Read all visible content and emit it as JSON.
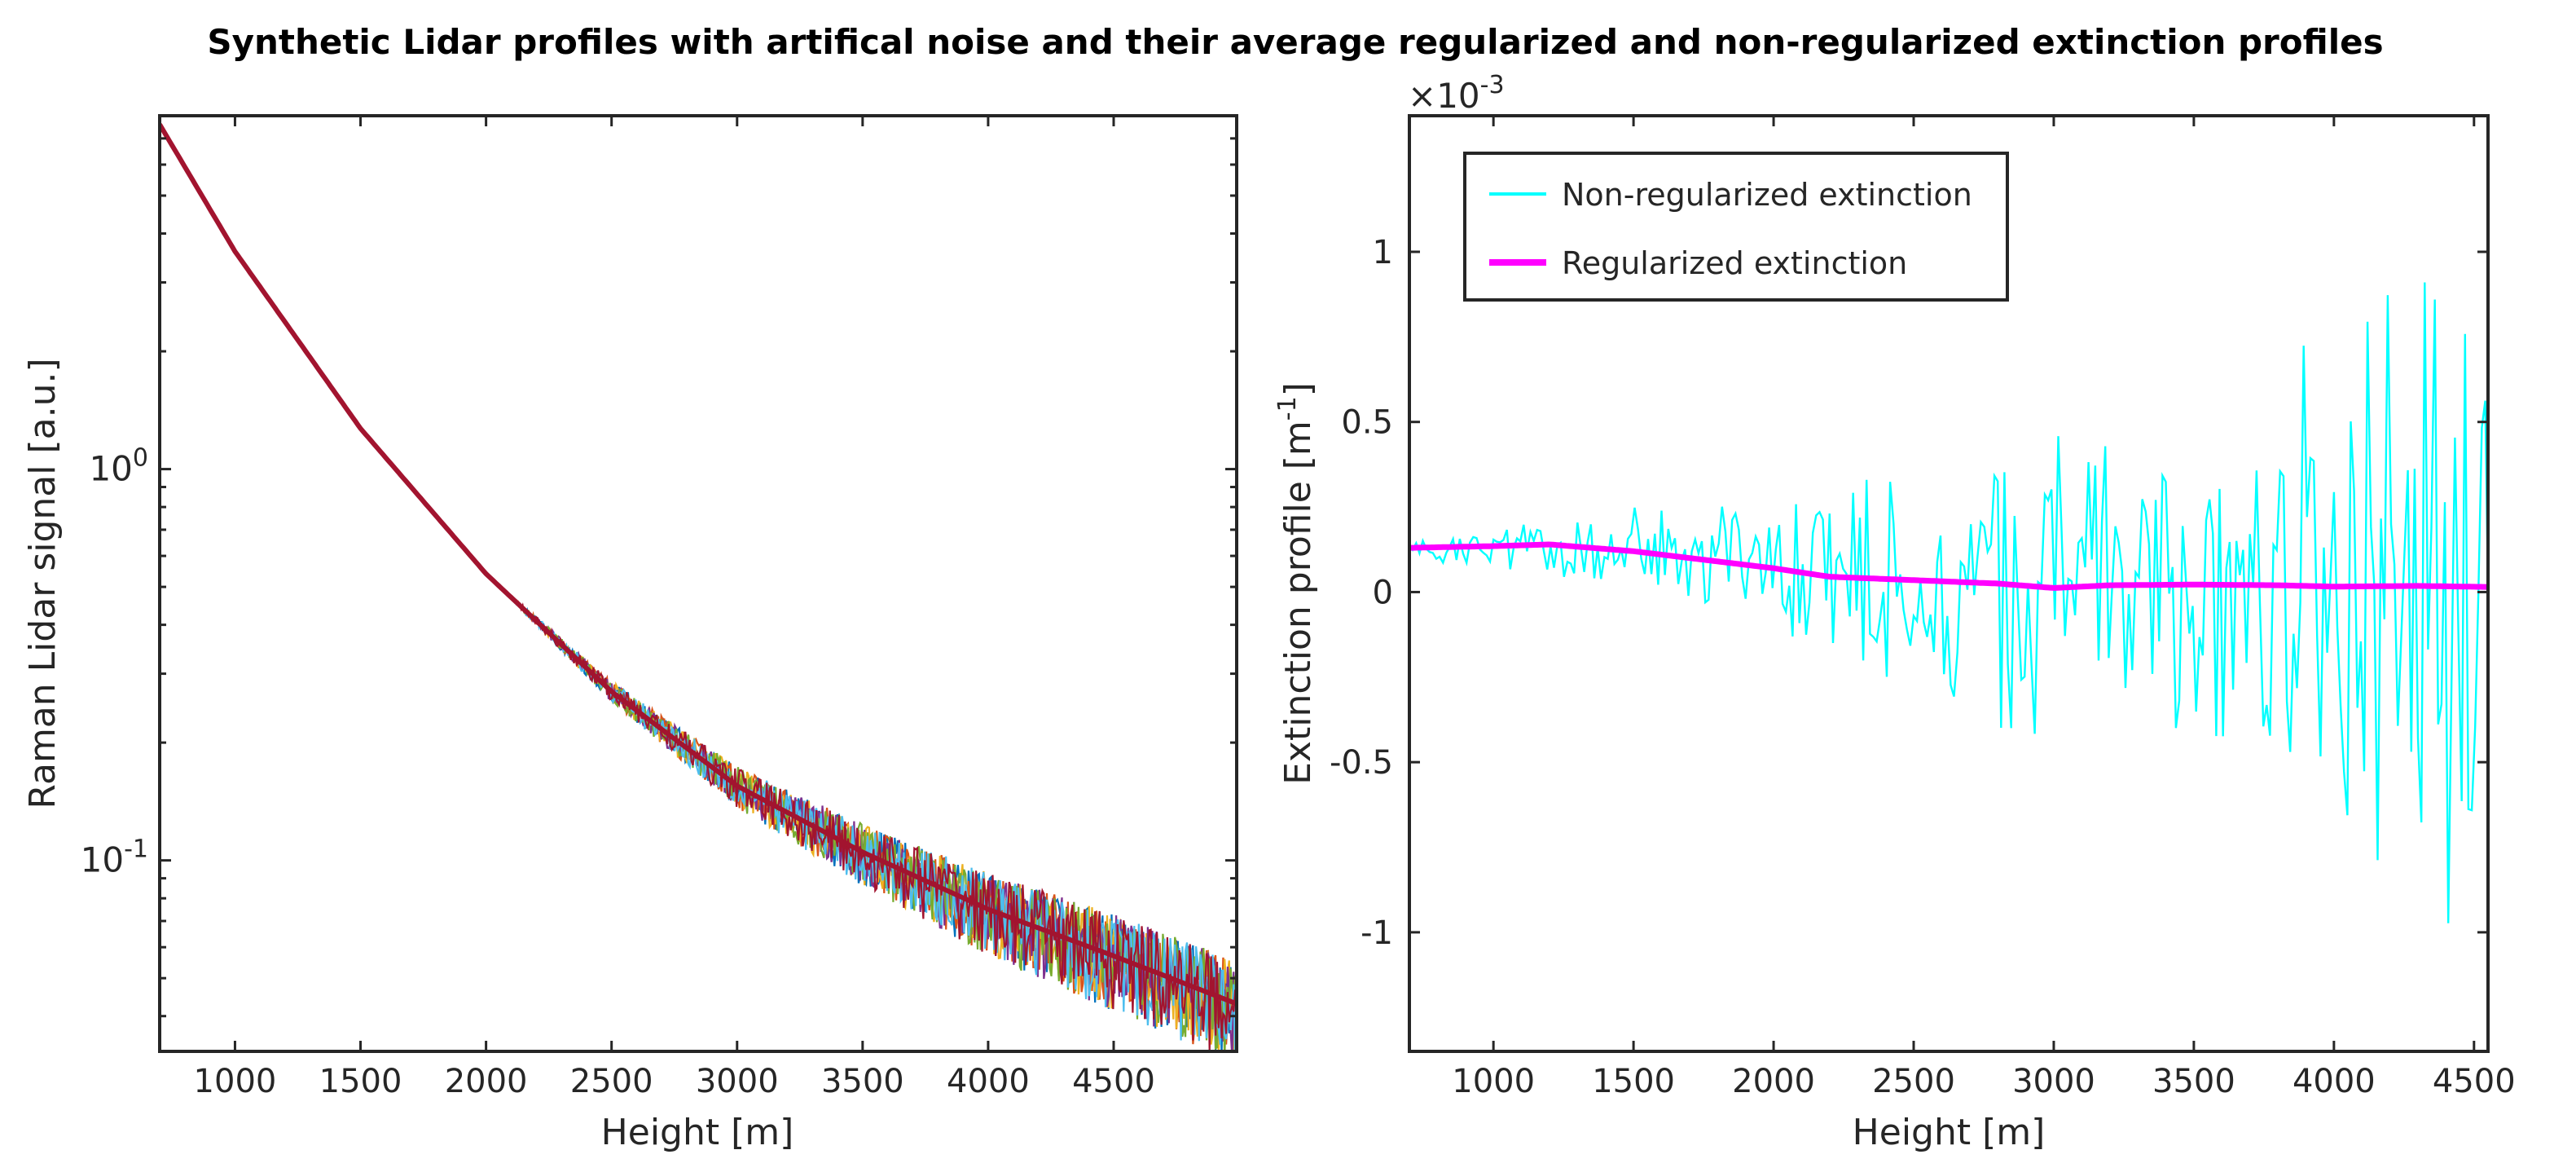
{
  "figure_title": "Synthetic Lidar profiles with artifical noise and their average regularized and non-regularized extinction profiles",
  "chart_data": [
    {
      "type": "line",
      "yscale": "log",
      "xlabel": "Height [m]",
      "ylabel": "Raman Lidar signal [a.u.]",
      "xlim": [
        700,
        4990
      ],
      "ylim": [
        0.0325,
        8.0
      ],
      "xticks": [
        1000,
        1500,
        2000,
        2500,
        3000,
        3500,
        4000,
        4500
      ],
      "xtick_labels": [
        "1000",
        "1500",
        "2000",
        "2500",
        "3000",
        "3500",
        "4000",
        "4500"
      ],
      "yticks": [
        {
          "value": 1,
          "base": "10",
          "exp": "0"
        },
        {
          "value": 0.1,
          "base": "10",
          "exp": "-1"
        }
      ],
      "noise_colors": [
        "#0072BD",
        "#D95319",
        "#EDB120",
        "#7E2F8E",
        "#77AC30",
        "#4DBEEE",
        "#A2142F"
      ],
      "noise_profile_count": 7,
      "mean_color": "#A2142F",
      "mean_signal": {
        "x": [
          700,
          1000,
          1500,
          2000,
          2500,
          3000,
          3500,
          4000,
          4500,
          4990
        ],
        "y": [
          7.6,
          3.6,
          1.27,
          0.54,
          0.27,
          0.155,
          0.105,
          0.075,
          0.057,
          0.043
        ]
      },
      "noise_band_fraction": {
        "x": [
          700,
          2000,
          2500,
          3000,
          3500,
          4000,
          4500,
          4990
        ],
        "value": [
          0.0,
          0.0,
          0.06,
          0.12,
          0.18,
          0.24,
          0.28,
          0.3
        ]
      }
    },
    {
      "type": "line",
      "xlabel": "Height [m]",
      "ylabel_main": "Extinction profile [m",
      "ylabel_sup": "-1",
      "ylabel_tail": "]",
      "multiplier_base": "×10",
      "multiplier_exp": "-3",
      "xlim": [
        700,
        4550
      ],
      "ylim": [
        -1.35,
        1.4
      ],
      "xticks": [
        1000,
        1500,
        2000,
        2500,
        3000,
        3500,
        4000,
        4500
      ],
      "xtick_labels": [
        "1000",
        "1500",
        "2000",
        "2500",
        "3000",
        "3500",
        "4000",
        "4500"
      ],
      "yticks": [
        1,
        0.5,
        0,
        -0.5,
        -1
      ],
      "ytick_labels": [
        "1",
        "0.5",
        "0",
        "-0.5",
        "-1"
      ],
      "legend_location": "top-left",
      "series": [
        {
          "name": "Non-regularized extinction",
          "color": "#00FFFF",
          "step": 12,
          "baseline": {
            "x": [
              700,
              1000,
              1500,
              2000,
              2500,
              3000,
              3500,
              4000,
              4500,
              4550
            ],
            "y": [
              0.13,
              0.13,
              0.12,
              0.08,
              0.04,
              0.02,
              0.02,
              0.02,
              0.02,
              0.02
            ]
          },
          "amplitude": {
            "x": [
              700,
              1000,
              1500,
              2000,
              2500,
              3000,
              3500,
              4000,
              4300,
              4550
            ],
            "y": [
              0.03,
              0.06,
              0.14,
              0.22,
              0.34,
              0.44,
              0.58,
              0.78,
              0.95,
              1.0
            ]
          }
        },
        {
          "name": "Regularized extinction",
          "color": "#FF00FF",
          "x": [
            700,
            1000,
            1200,
            1500,
            1800,
            2000,
            2200,
            2500,
            2800,
            3000,
            3200,
            3500,
            3800,
            4000,
            4300,
            4550
          ],
          "y": [
            0.13,
            0.135,
            0.14,
            0.12,
            0.09,
            0.07,
            0.045,
            0.035,
            0.025,
            0.012,
            0.02,
            0.022,
            0.02,
            0.016,
            0.018,
            0.015
          ]
        }
      ]
    }
  ]
}
